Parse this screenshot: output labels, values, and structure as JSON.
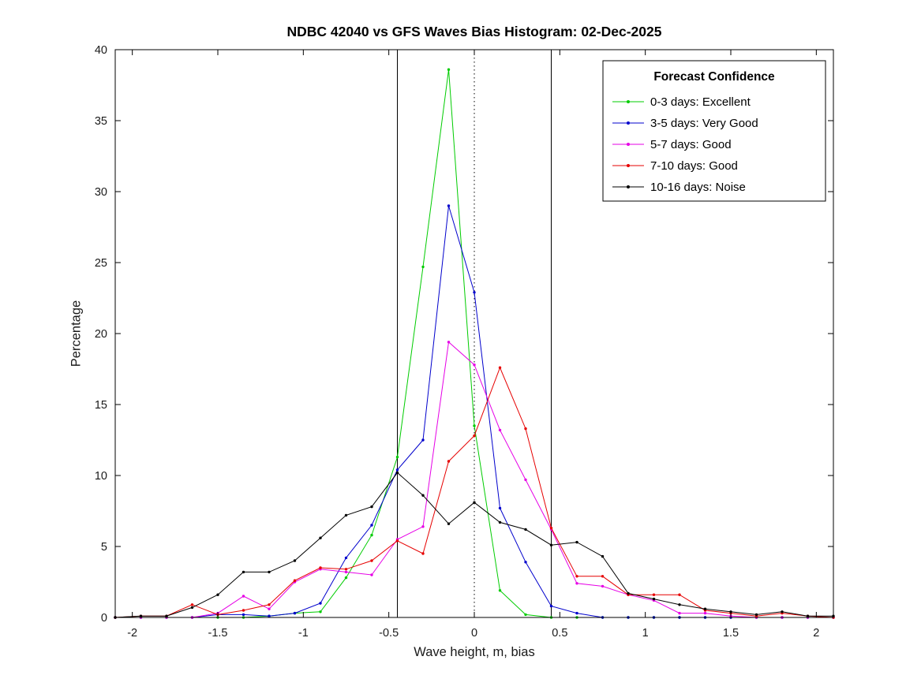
{
  "chart_data": {
    "type": "line",
    "title": "NDBC 42040 vs GFS Waves Bias Histogram: 02-Dec-2025",
    "xlabel": "Wave height, m, bias",
    "ylabel": "Percentage",
    "xlim": [
      -2.1,
      2.1
    ],
    "ylim": [
      0,
      40
    ],
    "xticks": [
      -2,
      -1.5,
      -1,
      -0.5,
      0,
      0.5,
      1,
      1.5,
      2
    ],
    "yticks": [
      0,
      5,
      10,
      15,
      20,
      25,
      30,
      35,
      40
    ],
    "grid": false,
    "legend": {
      "title": "Forecast Confidence",
      "position": "top-right"
    },
    "reference_lines": [
      {
        "x": -0.45,
        "style": "solid"
      },
      {
        "x": 0,
        "style": "dotted"
      },
      {
        "x": 0.45,
        "style": "solid"
      }
    ],
    "x": [
      -2.1,
      -1.95,
      -1.8,
      -1.65,
      -1.5,
      -1.35,
      -1.2,
      -1.05,
      -0.9,
      -0.75,
      -0.6,
      -0.45,
      -0.3,
      -0.15,
      0,
      0.15,
      0.3,
      0.45,
      0.6,
      0.75,
      0.9,
      1.05,
      1.2,
      1.35,
      1.5,
      1.65,
      1.8,
      1.95,
      2.1
    ],
    "series": [
      {
        "name": "0-3 days: Excellent",
        "color": "#00cc00",
        "values": [
          0,
          0,
          0,
          0,
          0,
          0,
          0.1,
          0.3,
          0.4,
          2.8,
          5.8,
          11.3,
          24.7,
          38.6,
          13.5,
          1.9,
          0.2,
          0,
          0,
          0,
          0,
          0,
          0,
          0,
          0,
          0,
          0,
          0,
          0
        ]
      },
      {
        "name": "3-5 days: Very Good",
        "color": "#0000cc",
        "values": [
          0,
          0,
          0,
          0,
          0.2,
          0.2,
          0.1,
          0.3,
          1.0,
          4.2,
          6.5,
          10.4,
          12.5,
          29.0,
          22.9,
          7.7,
          3.9,
          0.8,
          0.3,
          0,
          0,
          0,
          0,
          0,
          0,
          0,
          0,
          0,
          0
        ]
      },
      {
        "name": "5-7 days: Good",
        "color": "#e600e6",
        "values": [
          0,
          0,
          0,
          0,
          0.3,
          1.5,
          0.6,
          2.5,
          3.4,
          3.2,
          3.0,
          5.5,
          6.4,
          19.4,
          17.8,
          13.2,
          9.7,
          6.2,
          2.4,
          2.2,
          1.6,
          1.2,
          0.3,
          0.3,
          0.1,
          0,
          0,
          0,
          0
        ]
      },
      {
        "name": "7-10 days: Good",
        "color": "#e60000",
        "values": [
          0,
          0.1,
          0.1,
          0.9,
          0.2,
          0.5,
          0.9,
          2.6,
          3.5,
          3.4,
          4.0,
          5.4,
          4.5,
          11.0,
          12.8,
          17.6,
          13.3,
          6.3,
          2.9,
          2.9,
          1.6,
          1.6,
          1.6,
          0.5,
          0.3,
          0.1,
          0.3,
          0.1,
          0
        ]
      },
      {
        "name": "10-16 days: Noise",
        "color": "#000000",
        "values": [
          0,
          0.1,
          0.1,
          0.7,
          1.6,
          3.2,
          3.2,
          4.0,
          5.6,
          7.2,
          7.8,
          10.2,
          8.6,
          6.6,
          8.1,
          6.7,
          6.2,
          5.1,
          5.3,
          4.3,
          1.7,
          1.3,
          0.9,
          0.6,
          0.4,
          0.2,
          0.4,
          0.1,
          0.1
        ]
      }
    ]
  }
}
